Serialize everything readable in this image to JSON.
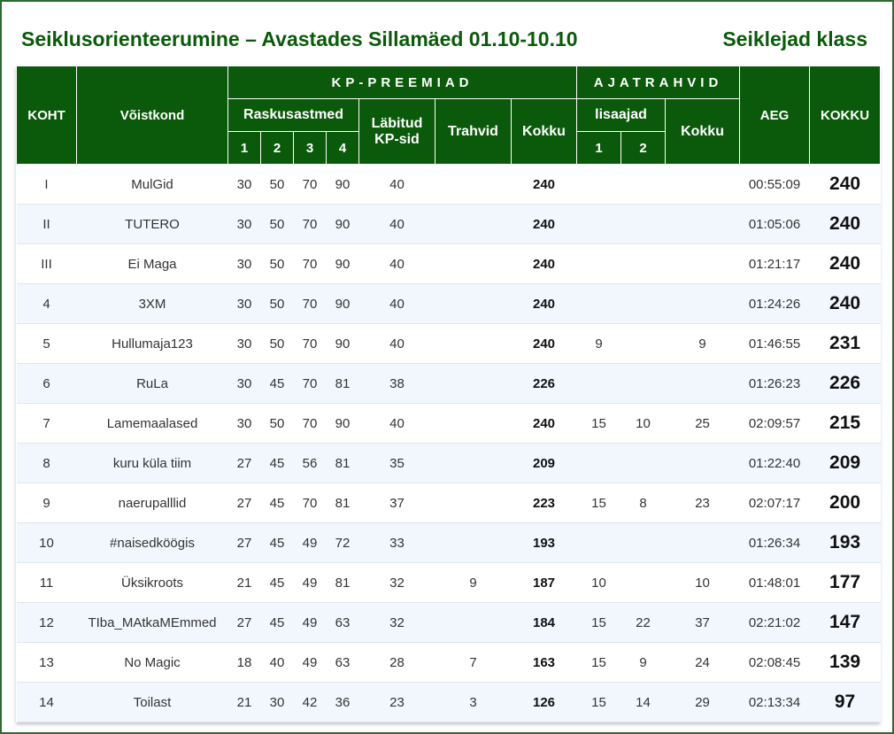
{
  "title_left": "Seiklusorienteerumine – Avastades Sillamäed 01.10-10.10",
  "title_right": "Seiklejad klass",
  "headers": {
    "place": "KOHT",
    "team": "Võistkond",
    "kp_group": "KP-PREEMIAD",
    "time_group": "AJATRAHVID",
    "difficulty": "Raskusastmed",
    "d1": "1",
    "d2": "2",
    "d3": "3",
    "d4": "4",
    "passed": "Läbitud KP-sid",
    "penalties": "Trahvid",
    "kp_total": "Kokku",
    "extra_time": "lisaajad",
    "e1": "1",
    "e2": "2",
    "time_total": "Kokku",
    "time": "AEG",
    "grand_total": "KOKKU"
  },
  "rows": [
    {
      "place": "I",
      "team": "MulGid",
      "d1": "30",
      "d2": "50",
      "d3": "70",
      "d4": "90",
      "passed": "40",
      "penalty": "",
      "kp_total": "240",
      "e1": "",
      "e2": "",
      "time_total": "",
      "time": "00:55:09",
      "total": "240"
    },
    {
      "place": "II",
      "team": "TUTERO",
      "d1": "30",
      "d2": "50",
      "d3": "70",
      "d4": "90",
      "passed": "40",
      "penalty": "",
      "kp_total": "240",
      "e1": "",
      "e2": "",
      "time_total": "",
      "time": "01:05:06",
      "total": "240"
    },
    {
      "place": "III",
      "team": "Ei Maga",
      "d1": "30",
      "d2": "50",
      "d3": "70",
      "d4": "90",
      "passed": "40",
      "penalty": "",
      "kp_total": "240",
      "e1": "",
      "e2": "",
      "time_total": "",
      "time": "01:21:17",
      "total": "240"
    },
    {
      "place": "4",
      "team": "3XM",
      "d1": "30",
      "d2": "50",
      "d3": "70",
      "d4": "90",
      "passed": "40",
      "penalty": "",
      "kp_total": "240",
      "e1": "",
      "e2": "",
      "time_total": "",
      "time": "01:24:26",
      "total": "240"
    },
    {
      "place": "5",
      "team": "Hullumaja123",
      "d1": "30",
      "d2": "50",
      "d3": "70",
      "d4": "90",
      "passed": "40",
      "penalty": "",
      "kp_total": "240",
      "e1": "9",
      "e2": "",
      "time_total": "9",
      "time": "01:46:55",
      "total": "231"
    },
    {
      "place": "6",
      "team": "RuLa",
      "d1": "30",
      "d2": "45",
      "d3": "70",
      "d4": "81",
      "passed": "38",
      "penalty": "",
      "kp_total": "226",
      "e1": "",
      "e2": "",
      "time_total": "",
      "time": "01:26:23",
      "total": "226"
    },
    {
      "place": "7",
      "team": "Lamemaalased",
      "d1": "30",
      "d2": "50",
      "d3": "70",
      "d4": "90",
      "passed": "40",
      "penalty": "",
      "kp_total": "240",
      "e1": "15",
      "e2": "10",
      "time_total": "25",
      "time": "02:09:57",
      "total": "215"
    },
    {
      "place": "8",
      "team": "kuru küla tiim",
      "d1": "27",
      "d2": "45",
      "d3": "56",
      "d4": "81",
      "passed": "35",
      "penalty": "",
      "kp_total": "209",
      "e1": "",
      "e2": "",
      "time_total": "",
      "time": "01:22:40",
      "total": "209"
    },
    {
      "place": "9",
      "team": "naerupalllid",
      "d1": "27",
      "d2": "45",
      "d3": "70",
      "d4": "81",
      "passed": "37",
      "penalty": "",
      "kp_total": "223",
      "e1": "15",
      "e2": "8",
      "time_total": "23",
      "time": "02:07:17",
      "total": "200"
    },
    {
      "place": "10",
      "team": "#naisedköögis",
      "d1": "27",
      "d2": "45",
      "d3": "49",
      "d4": "72",
      "passed": "33",
      "penalty": "",
      "kp_total": "193",
      "e1": "",
      "e2": "",
      "time_total": "",
      "time": "01:26:34",
      "total": "193"
    },
    {
      "place": "11",
      "team": "Üksikroots",
      "d1": "21",
      "d2": "45",
      "d3": "49",
      "d4": "81",
      "passed": "32",
      "penalty": "9",
      "kp_total": "187",
      "e1": "10",
      "e2": "",
      "time_total": "10",
      "time": "01:48:01",
      "total": "177"
    },
    {
      "place": "12",
      "team": "TIba_MAtkaMEmmed",
      "d1": "27",
      "d2": "45",
      "d3": "49",
      "d4": "63",
      "passed": "32",
      "penalty": "",
      "kp_total": "184",
      "e1": "15",
      "e2": "22",
      "time_total": "37",
      "time": "02:21:02",
      "total": "147"
    },
    {
      "place": "13",
      "team": "No Magic",
      "d1": "18",
      "d2": "40",
      "d3": "49",
      "d4": "63",
      "passed": "28",
      "penalty": "7",
      "kp_total": "163",
      "e1": "15",
      "e2": "9",
      "time_total": "24",
      "time": "02:08:45",
      "total": "139"
    },
    {
      "place": "14",
      "team": "Toilast",
      "d1": "21",
      "d2": "30",
      "d3": "42",
      "d4": "36",
      "passed": "23",
      "penalty": "3",
      "kp_total": "126",
      "e1": "15",
      "e2": "14",
      "time_total": "29",
      "time": "02:13:34",
      "total": "97"
    }
  ]
}
